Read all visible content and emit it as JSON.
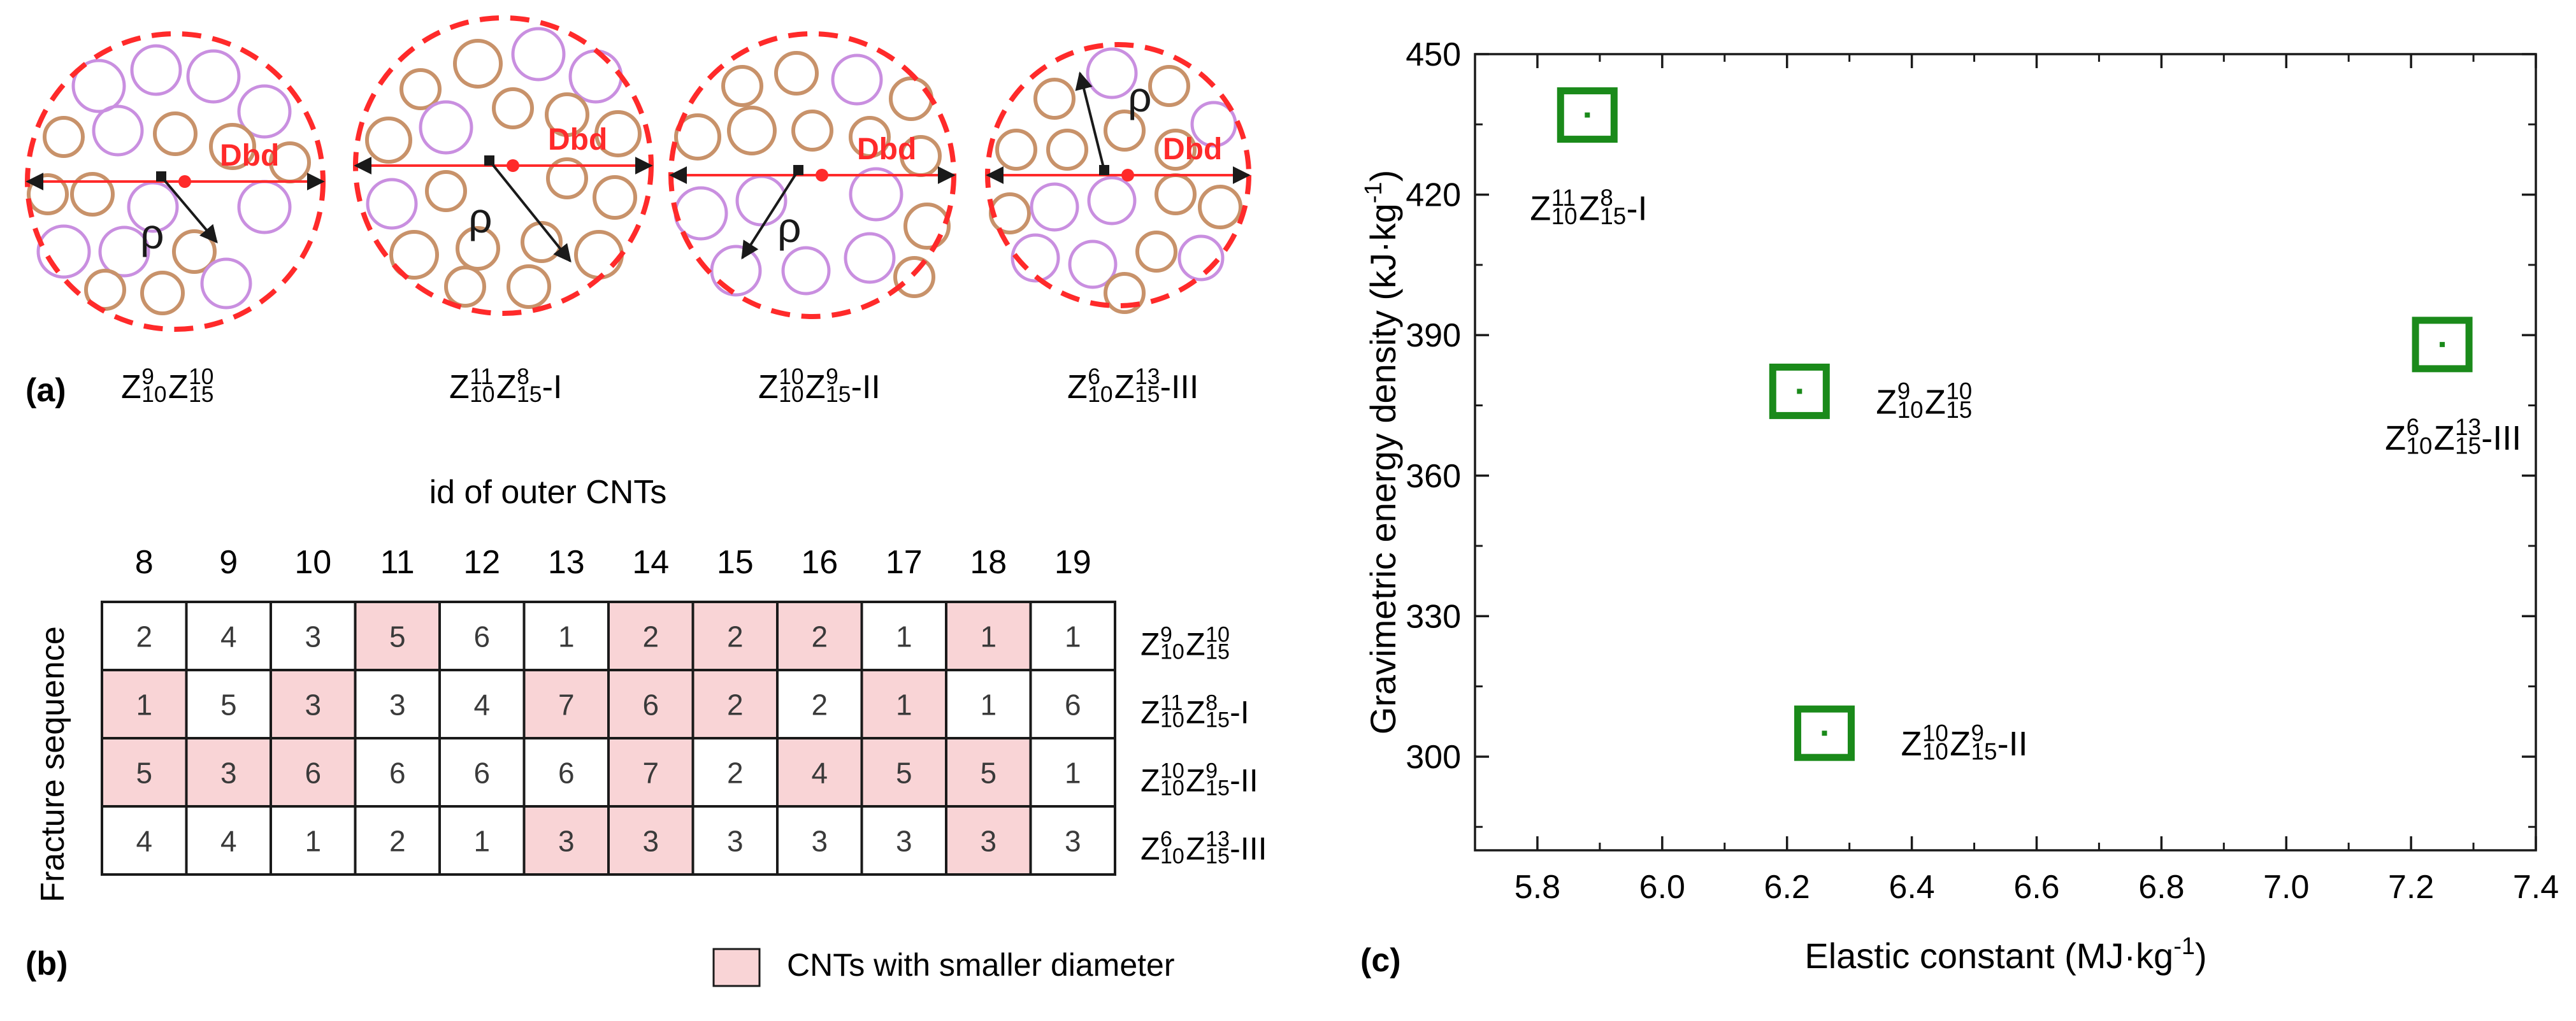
{
  "colors": {
    "boundary": "#ff2a2a",
    "large_cnt": "#c98fe0",
    "small_cnt": "#c8926a",
    "highlight": "#f9d4d6",
    "marker": "#1a8a1a",
    "axis": "#1a1a1a",
    "arrow": "#1a1a1a"
  },
  "panel_a": {
    "label": "(a)",
    "dbd": "Dbd",
    "rho": "ρ",
    "structures": [
      {
        "sup1": "9",
        "sub1": "10",
        "sup2": "10",
        "sub2": "15",
        "suffix": ""
      },
      {
        "sup1": "11",
        "sub1": "10",
        "sup2": "8",
        "sub2": "15",
        "suffix": "-I"
      },
      {
        "sup1": "10",
        "sub1": "10",
        "sup2": "9",
        "sub2": "15",
        "suffix": "-II"
      },
      {
        "sup1": "6",
        "sub1": "10",
        "sup2": "13",
        "sub2": "15",
        "suffix": "-III"
      }
    ]
  },
  "panel_b": {
    "label": "(b)",
    "title": "id of outer CNTs",
    "ylabel": "Fracture sequence",
    "legend": "CNTs with smaller diameter",
    "columns": [
      "8",
      "9",
      "10",
      "11",
      "12",
      "13",
      "14",
      "15",
      "16",
      "17",
      "18",
      "19"
    ],
    "rows": [
      {
        "values": [
          "2",
          "4",
          "3",
          "5",
          "6",
          "1",
          "2",
          "2",
          "2",
          "1",
          "1",
          "1"
        ],
        "highlight": [
          false,
          false,
          false,
          true,
          false,
          false,
          true,
          true,
          true,
          false,
          true,
          false
        ],
        "sup1": "9",
        "sub1": "10",
        "sup2": "10",
        "sub2": "15",
        "suffix": ""
      },
      {
        "values": [
          "1",
          "5",
          "3",
          "3",
          "4",
          "7",
          "6",
          "2",
          "2",
          "1",
          "1",
          "6"
        ],
        "highlight": [
          true,
          false,
          true,
          false,
          false,
          true,
          true,
          true,
          false,
          true,
          false,
          false
        ],
        "sup1": "11",
        "sub1": "10",
        "sup2": "8",
        "sub2": "15",
        "suffix": "-I"
      },
      {
        "values": [
          "5",
          "3",
          "6",
          "6",
          "6",
          "6",
          "7",
          "2",
          "4",
          "5",
          "5",
          "1"
        ],
        "highlight": [
          true,
          true,
          true,
          false,
          false,
          false,
          true,
          false,
          true,
          true,
          true,
          false
        ],
        "sup1": "10",
        "sub1": "10",
        "sup2": "9",
        "sub2": "15",
        "suffix": "-II"
      },
      {
        "values": [
          "4",
          "4",
          "1",
          "2",
          "1",
          "3",
          "3",
          "3",
          "3",
          "3",
          "3",
          "3"
        ],
        "highlight": [
          false,
          false,
          false,
          false,
          false,
          true,
          true,
          false,
          false,
          false,
          true,
          false
        ],
        "sup1": "6",
        "sub1": "10",
        "sup2": "13",
        "sub2": "15",
        "suffix": "-III"
      }
    ]
  },
  "chart_data": {
    "type": "scatter",
    "label": "(c)",
    "xlabel": "Elastic constant (MJ·kg",
    "xlabel_sup": "-1",
    "xlabel_end": ")",
    "ylabel": "Gravimetric energy density (kJ·kg",
    "ylabel_sup": "-1",
    "ylabel_end": ")",
    "xlim": [
      5.7,
      7.4
    ],
    "ylim": [
      280,
      450
    ],
    "xticks": [
      "5.8",
      "6.0",
      "6.2",
      "6.4",
      "6.6",
      "6.8",
      "7.0",
      "7.2",
      "7.4"
    ],
    "yticks": [
      "300",
      "330",
      "360",
      "390",
      "420",
      "450"
    ],
    "points": [
      {
        "x": 5.88,
        "y": 437,
        "sup1": "11",
        "sub1": "10",
        "sup2": "8",
        "sub2": "15",
        "suffix": "-I",
        "label_pos": "below"
      },
      {
        "x": 6.22,
        "y": 378,
        "sup1": "9",
        "sub1": "10",
        "sup2": "10",
        "sub2": "15",
        "suffix": "",
        "label_pos": "right"
      },
      {
        "x": 6.26,
        "y": 305,
        "sup1": "10",
        "sub1": "10",
        "sup2": "9",
        "sub2": "15",
        "suffix": "-II",
        "label_pos": "right"
      },
      {
        "x": 7.25,
        "y": 388,
        "sup1": "6",
        "sub1": "10",
        "sup2": "13",
        "sub2": "15",
        "suffix": "-III",
        "label_pos": "below"
      }
    ]
  }
}
